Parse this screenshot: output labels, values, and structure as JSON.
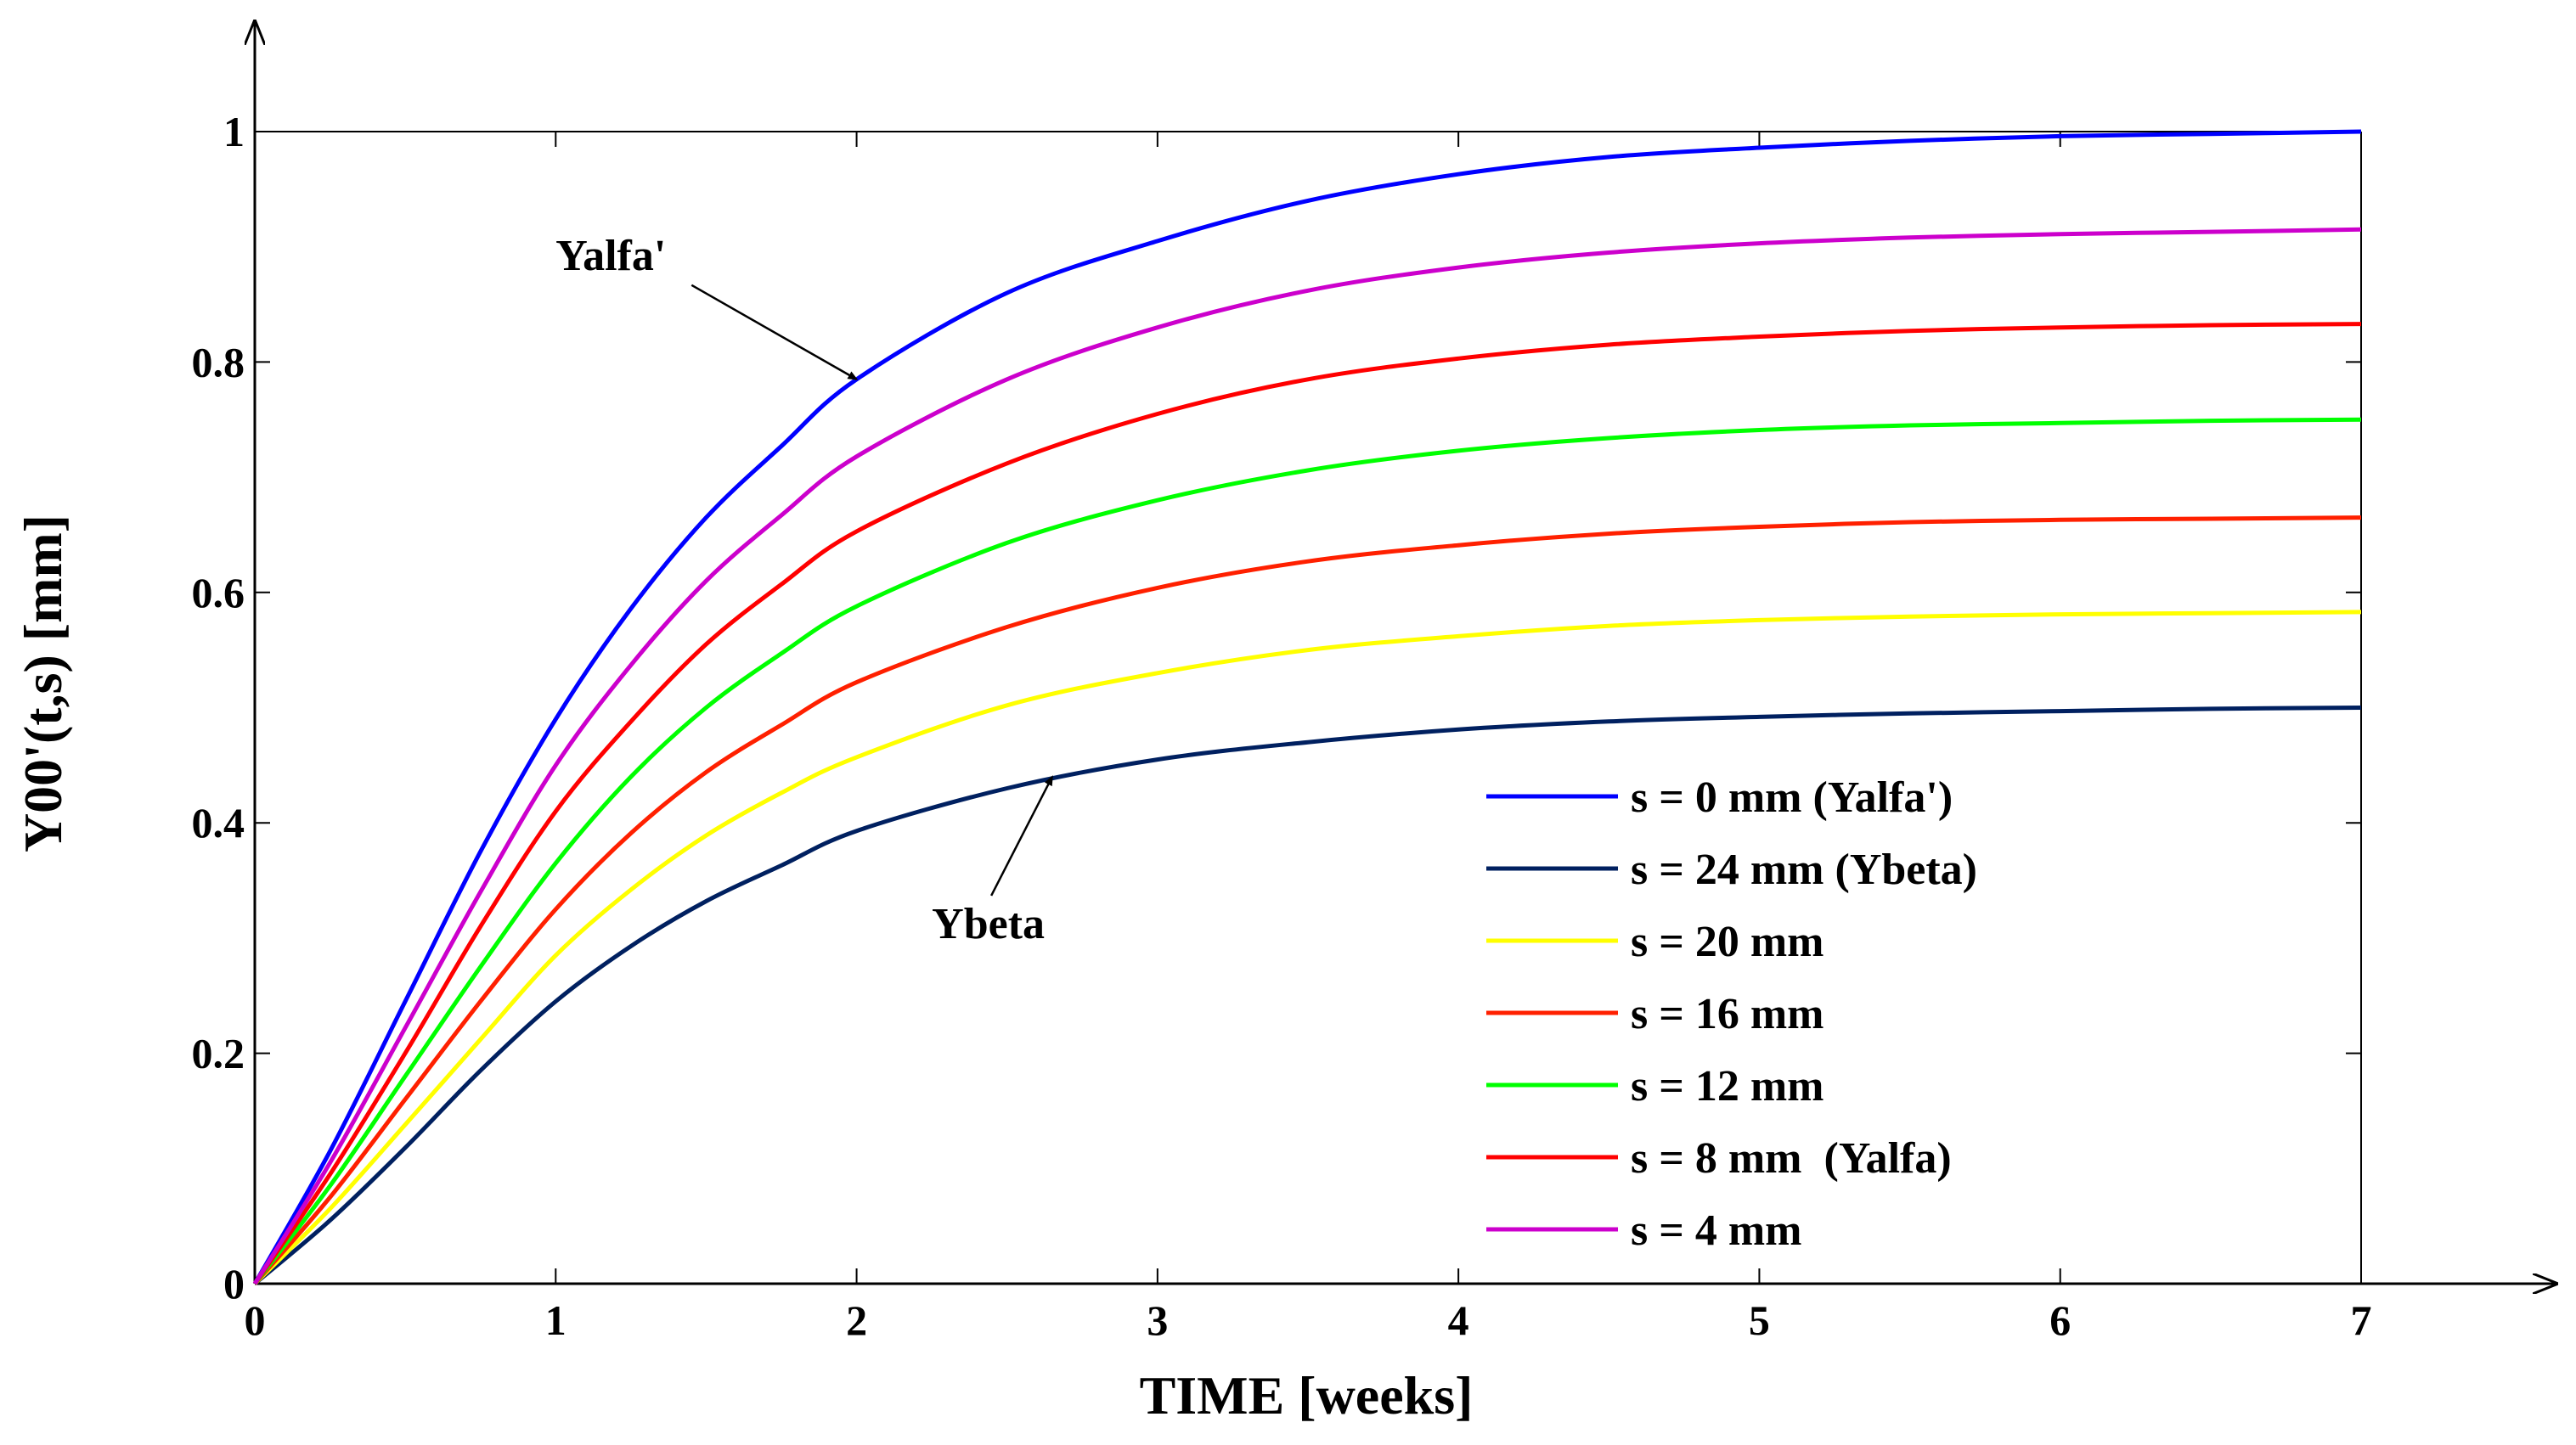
{
  "chart_data": {
    "type": "line",
    "xlabel": "TIME [weeks]",
    "ylabel": "Y00'(t,s) [mm]",
    "xlim": [
      0,
      7
    ],
    "ylim": [
      0,
      1
    ],
    "xticks": [
      0,
      1,
      2,
      3,
      4,
      5,
      6,
      7
    ],
    "yticks": [
      0,
      0.2,
      0.4,
      0.6,
      0.8,
      1
    ],
    "ytick_labels": [
      "0",
      "0.2",
      "0.4",
      "0.6",
      "0.8",
      "1"
    ],
    "grid": false,
    "legend_position": "bottom-right",
    "x": [
      0,
      0.25,
      0.5,
      0.75,
      1,
      1.25,
      1.5,
      1.75,
      2,
      2.5,
      3,
      3.5,
      4,
      4.5,
      5,
      5.5,
      6,
      6.5,
      7
    ],
    "series": [
      {
        "name": "s = 0 mm (Yalfa')",
        "color": "#0000ff",
        "final": 1.0,
        "values": [
          0,
          0.115,
          0.245,
          0.375,
          0.49,
          0.586,
          0.665,
          0.727,
          0.785,
          0.86,
          0.905,
          0.94,
          0.963,
          0.978,
          0.986,
          0.992,
          0.996,
          0.998,
          1.0
        ]
      },
      {
        "name": "s = 24 mm (Ybeta)",
        "color": "#002060",
        "final": 0.5,
        "values": [
          0,
          0.055,
          0.118,
          0.185,
          0.245,
          0.293,
          0.332,
          0.363,
          0.393,
          0.43,
          0.455,
          0.47,
          0.481,
          0.488,
          0.492,
          0.495,
          0.497,
          0.499,
          0.5
        ]
      },
      {
        "name": "s = 20 mm",
        "color": "#ffff00",
        "final": 0.583,
        "values": [
          0,
          0.065,
          0.138,
          0.212,
          0.285,
          0.342,
          0.389,
          0.426,
          0.457,
          0.502,
          0.53,
          0.55,
          0.562,
          0.571,
          0.576,
          0.579,
          0.581,
          0.582,
          0.583
        ]
      },
      {
        "name": "s = 16 mm",
        "color": "#ff2000",
        "final": 0.665,
        "values": [
          0,
          0.075,
          0.16,
          0.245,
          0.325,
          0.391,
          0.444,
          0.485,
          0.522,
          0.57,
          0.604,
          0.627,
          0.641,
          0.651,
          0.657,
          0.661,
          0.663,
          0.664,
          0.665
        ]
      },
      {
        "name": "s = 12 mm",
        "color": "#00ff00",
        "final": 0.75,
        "values": [
          0,
          0.085,
          0.18,
          0.275,
          0.365,
          0.44,
          0.5,
          0.547,
          0.588,
          0.643,
          0.68,
          0.706,
          0.723,
          0.734,
          0.741,
          0.745,
          0.747,
          0.749,
          0.75
        ]
      },
      {
        "name": "s = 8 mm  (Yalfa)",
        "color": "#ff0000",
        "final": 0.833,
        "values": [
          0,
          0.095,
          0.2,
          0.31,
          0.41,
          0.488,
          0.555,
          0.607,
          0.653,
          0.712,
          0.755,
          0.785,
          0.803,
          0.815,
          0.822,
          0.827,
          0.83,
          0.832,
          0.833
        ]
      },
      {
        "name": "s = 4 mm",
        "color": "#cc00cc",
        "final": 0.915,
        "values": [
          0,
          0.105,
          0.222,
          0.34,
          0.45,
          0.537,
          0.61,
          0.667,
          0.718,
          0.785,
          0.83,
          0.862,
          0.882,
          0.895,
          0.903,
          0.908,
          0.911,
          0.913,
          0.915
        ]
      }
    ],
    "annotations": [
      {
        "text": "Yalfa'",
        "x": 2.0,
        "y": 0.785,
        "label_x": 1.0,
        "label_y": 0.88
      },
      {
        "text": "Ybeta",
        "x": 2.65,
        "y": 0.44,
        "label_x": 2.25,
        "label_y": 0.3
      }
    ]
  }
}
